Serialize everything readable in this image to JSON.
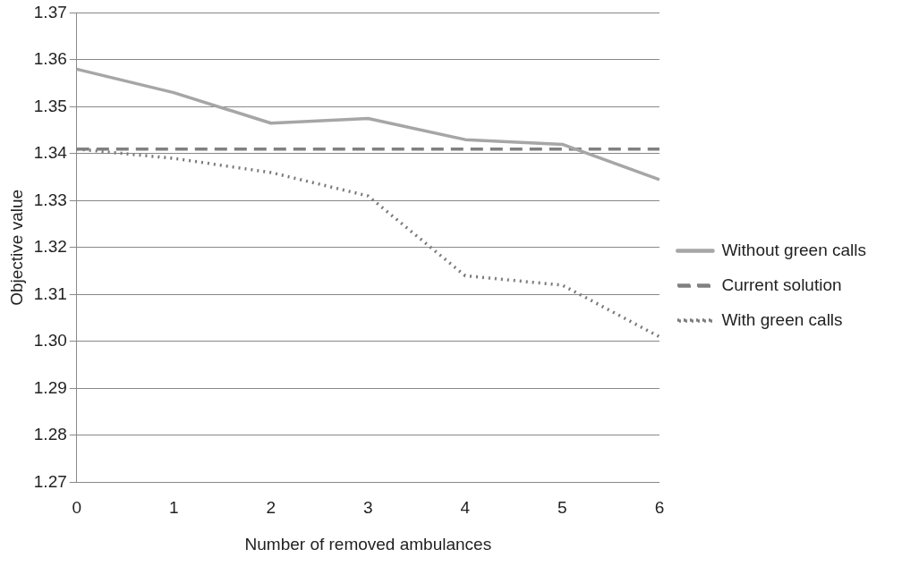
{
  "chart_data": {
    "type": "line",
    "xlabel": "Number of removed ambulances",
    "ylabel": "Objective value",
    "categories": [
      "0",
      "1",
      "2",
      "3",
      "4",
      "5",
      "6"
    ],
    "series": [
      {
        "name": "Without green calls",
        "color": "#a6a6a6",
        "line_style": "solid",
        "values": [
          1.358,
          1.353,
          1.3465,
          1.3475,
          1.343,
          1.342,
          1.3345
        ]
      },
      {
        "name": "Current solution",
        "color": "#808080",
        "line_style": "dashed",
        "values": [
          1.341,
          1.341,
          1.341,
          1.341,
          1.341,
          1.341,
          1.341
        ]
      },
      {
        "name": "With green calls",
        "color": "#7a7a7a",
        "line_style": "dotted",
        "values": [
          1.341,
          1.339,
          1.336,
          1.331,
          1.314,
          1.312,
          1.301
        ]
      }
    ],
    "ylim": [
      1.27,
      1.37
    ],
    "yticks": [
      {
        "value": 1.27,
        "label": "1.27"
      },
      {
        "value": 1.28,
        "label": "1.28"
      },
      {
        "value": 1.29,
        "label": "1.29"
      },
      {
        "value": 1.3,
        "label": "1.30"
      },
      {
        "value": 1.31,
        "label": "1.31"
      },
      {
        "value": 1.32,
        "label": "1.32"
      },
      {
        "value": 1.33,
        "label": "1.33"
      },
      {
        "value": 1.34,
        "label": "1.34"
      },
      {
        "value": 1.35,
        "label": "1.35"
      },
      {
        "value": 1.36,
        "label": "1.36"
      },
      {
        "value": 1.37,
        "label": "1.37"
      }
    ],
    "grid": "y",
    "legend": "right",
    "marker": "none"
  }
}
